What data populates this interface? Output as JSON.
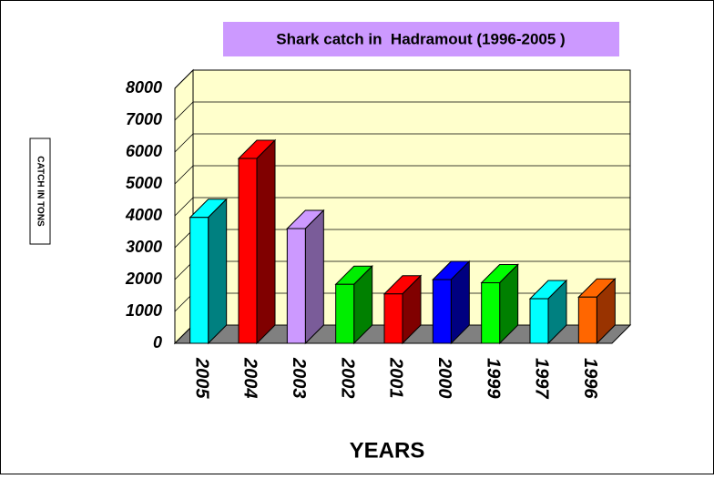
{
  "chart_data": {
    "type": "bar3d",
    "title": "Shark catch in  Hadramout (1996-2005 )",
    "y_label": "CATCH IN TONS",
    "x_label": "YEARS",
    "categories": [
      "2005",
      "2004",
      "2003",
      "2002",
      "2001",
      "2000",
      "1999",
      "1997",
      "1996"
    ],
    "values": [
      3950,
      5800,
      3600,
      1850,
      1550,
      2000,
      1900,
      1400,
      1450
    ],
    "colors": [
      "#00ffff",
      "#ff0000",
      "#cc99ff",
      "#00ee00",
      "#ff0000",
      "#0000ff",
      "#00ff00",
      "#00ffff",
      "#ff6600"
    ],
    "side_colors": [
      "#008080",
      "#800000",
      "#7a5c99",
      "#008000",
      "#800000",
      "#000080",
      "#008000",
      "#008080",
      "#993300"
    ],
    "ylim": [
      0,
      8000
    ],
    "yticks": [
      0,
      1000,
      2000,
      3000,
      4000,
      5000,
      6000,
      7000,
      8000
    ],
    "grid": true
  }
}
